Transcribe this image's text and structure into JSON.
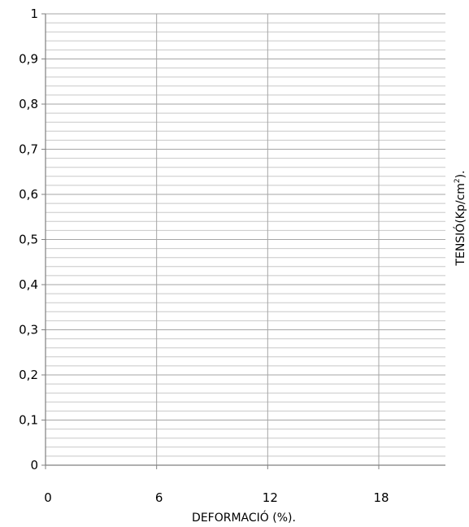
{
  "chart_data": {
    "type": "scatter",
    "title": "",
    "xlabel": "DEFORMACIÓ (%).",
    "ylabel": {
      "base": "TENSIÓ(Kp/cm",
      "superscript": "2",
      "suffix": ")."
    },
    "xlim": [
      0,
      21.6
    ],
    "ylim": [
      0,
      1
    ],
    "x_ticks": [
      0,
      6,
      12,
      18
    ],
    "x_tick_labels": [
      "0",
      "6",
      "12",
      "18"
    ],
    "y_ticks": [
      0,
      0.1,
      0.2,
      0.3,
      0.4,
      0.5,
      0.6,
      0.7,
      0.8,
      0.9,
      1
    ],
    "y_tick_labels": [
      "0",
      "0,1",
      "0,2",
      "0,3",
      "0,4",
      "0,5",
      "0,6",
      "0,7",
      "0,8",
      "0,9",
      "1"
    ],
    "y_minor_gridlines_per_major": 5,
    "grid": true,
    "legend": "none",
    "series": []
  }
}
